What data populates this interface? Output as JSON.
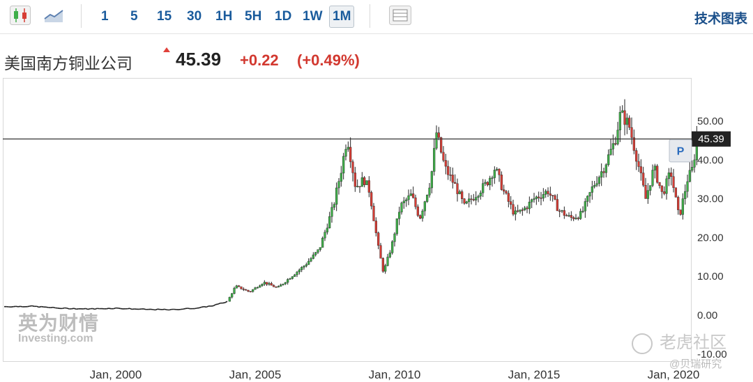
{
  "toolbar": {
    "icons": [
      "candlestick-chart-icon",
      "line-chart-icon",
      "table-view-icon"
    ],
    "timeframes": [
      {
        "label": "1",
        "active": false
      },
      {
        "label": "5",
        "active": false
      },
      {
        "label": "15",
        "active": false
      },
      {
        "label": "30",
        "active": false
      },
      {
        "label": "1H",
        "active": false
      },
      {
        "label": "5H",
        "active": false
      },
      {
        "label": "1D",
        "active": false
      },
      {
        "label": "1W",
        "active": false
      },
      {
        "label": "1M",
        "active": true
      }
    ],
    "tech_chart_label": "技术图表"
  },
  "quote": {
    "name": "美国南方铜业公司",
    "price": "45.39",
    "change": "+0.22",
    "change_pct": "(+0.49%)",
    "up_color": "#d2382f"
  },
  "watermarks": {
    "investing_cn": "英为财情",
    "investing_en": "Investing.com",
    "tiger": "老虎社区",
    "bei": "@贝瑞研究"
  },
  "chart_data": {
    "type": "candlestick",
    "interval": "1M",
    "title": "",
    "xlabel": "",
    "ylabel": "",
    "ylim": [
      -10,
      58
    ],
    "y_ticks": [
      "50.00",
      "40.00",
      "30.00",
      "20.00",
      "10.00",
      "0.00",
      "-10.00"
    ],
    "x_ticks": [
      "Jan, 2000",
      "Jan, 2005",
      "Jan, 2010",
      "Jan, 2015",
      "Jan, 2020"
    ],
    "x_tick_years": [
      2000,
      2005,
      2010,
      2015,
      2020
    ],
    "current_price_line": 45.39,
    "current_price_label": "45.39",
    "price_marker": "P",
    "grid": false,
    "up_color": "#3fae49",
    "down_color": "#d63d35",
    "series": [
      {
        "close_points": [
          [
            1996.0,
            2.2
          ],
          [
            1997.0,
            2.3
          ],
          [
            1998.0,
            1.8
          ],
          [
            1999.0,
            1.6
          ],
          [
            2000.0,
            1.8
          ],
          [
            2001.0,
            1.5
          ],
          [
            2002.0,
            1.4
          ],
          [
            2003.0,
            1.9
          ],
          [
            2003.5,
            2.5
          ],
          [
            2004.0,
            3.5
          ],
          [
            2004.3,
            7.5
          ],
          [
            2004.8,
            6.0
          ],
          [
            2005.3,
            8.5
          ],
          [
            2005.8,
            7.0
          ],
          [
            2006.3,
            10.0
          ],
          [
            2006.8,
            13.0
          ],
          [
            2007.3,
            17.0
          ],
          [
            2007.8,
            28.0
          ],
          [
            2008.1,
            38.0
          ],
          [
            2008.3,
            46.0
          ],
          [
            2008.6,
            33.0
          ],
          [
            2008.9,
            35.0
          ],
          [
            2009.1,
            32.0
          ],
          [
            2009.4,
            18.0
          ],
          [
            2009.6,
            11.0
          ],
          [
            2009.9,
            18.0
          ],
          [
            2010.2,
            28.0
          ],
          [
            2010.6,
            31.0
          ],
          [
            2010.9,
            25.0
          ],
          [
            2011.3,
            35.0
          ],
          [
            2011.5,
            47.0
          ],
          [
            2011.8,
            38.0
          ],
          [
            2012.2,
            33.0
          ],
          [
            2012.5,
            28.0
          ],
          [
            2012.9,
            31.0
          ],
          [
            2013.3,
            34.0
          ],
          [
            2013.6,
            38.0
          ],
          [
            2013.9,
            32.0
          ],
          [
            2014.3,
            26.0
          ],
          [
            2014.6,
            27.0
          ],
          [
            2015.0,
            30.0
          ],
          [
            2015.5,
            32.0
          ],
          [
            2015.9,
            27.0
          ],
          [
            2016.3,
            25.0
          ],
          [
            2016.7,
            26.0
          ],
          [
            2017.1,
            33.0
          ],
          [
            2017.5,
            38.0
          ],
          [
            2017.9,
            45.0
          ],
          [
            2018.1,
            52.0
          ],
          [
            2018.4,
            49.0
          ],
          [
            2018.7,
            40.0
          ],
          [
            2019.0,
            30.0
          ],
          [
            2019.3,
            38.0
          ],
          [
            2019.6,
            31.0
          ],
          [
            2019.9,
            37.0
          ],
          [
            2020.2,
            25.0
          ],
          [
            2020.5,
            35.0
          ],
          [
            2020.7,
            38.0
          ],
          [
            2020.85,
            47.0
          ],
          [
            2020.95,
            45.39
          ]
        ]
      }
    ]
  }
}
